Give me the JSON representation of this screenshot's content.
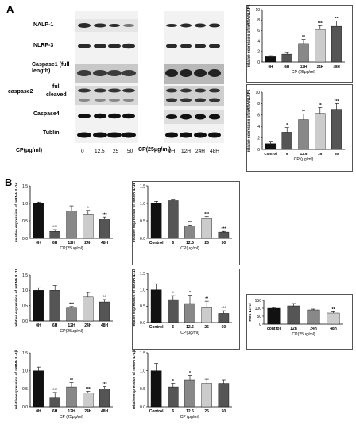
{
  "panel_A": {
    "letter": "A",
    "wb_labels": [
      "NALP-1",
      "NLRP-3",
      "Caspase1 (full length)",
      "caspase2",
      "full",
      "cleaved",
      "Caspase4",
      "Tublin"
    ],
    "cp_conc_label": "CP(μg/ml)",
    "cp_conc_ticks": [
      "0",
      "12.5",
      "25",
      "50"
    ],
    "cp_time_label": "CP(25μg/ml)",
    "cp_time_ticks": [
      "0H",
      "12H",
      "24H",
      "48H"
    ]
  },
  "panel_B": {
    "letter": "B"
  },
  "colors": {
    "bar_black": "#111111",
    "bar_dark": "#555555",
    "bar_mid": "#888888",
    "bar_light": "#cccccc"
  },
  "chart_data": [
    {
      "id": "A_nlrp1_time",
      "type": "bar",
      "ylabel": "relative expression of mRNA NLRP1",
      "xlabel": "CP (25μg/ml)",
      "categories": [
        "0H",
        "6H",
        "12H",
        "24H",
        "48H"
      ],
      "values": [
        1.0,
        1.5,
        3.5,
        6.2,
        6.8
      ],
      "errors": [
        0.2,
        0.3,
        0.8,
        0.7,
        1.0
      ],
      "sig": [
        "",
        "",
        "**",
        "***",
        "**"
      ],
      "ylim": [
        0,
        10
      ],
      "yticks": [
        "0",
        "2",
        "4",
        "6",
        "8",
        "10"
      ]
    },
    {
      "id": "A_nlrp1_conc",
      "type": "bar",
      "ylabel": "relative expression of mRNA NLRP1",
      "xlabel": "CP  (μg/ml)",
      "categories": [
        "Control",
        "6",
        "12.5",
        "25",
        "50"
      ],
      "values": [
        1.0,
        3.0,
        5.2,
        6.3,
        7.0
      ],
      "errors": [
        0.3,
        0.8,
        1.0,
        1.0,
        1.0
      ],
      "sig": [
        "",
        "*",
        "**",
        "**",
        "***"
      ],
      "ylim": [
        0,
        10
      ],
      "yticks": [
        "0",
        "2",
        "4",
        "6",
        "8",
        "10"
      ]
    },
    {
      "id": "B_il1a_time",
      "type": "bar",
      "ylabel": "relative expression of mRNA IL-1α",
      "xlabel": "CP(25μg/ml)",
      "categories": [
        "0H",
        "6H",
        "12H",
        "24H",
        "48H"
      ],
      "values": [
        1.0,
        0.2,
        0.78,
        0.7,
        0.56
      ],
      "errors": [
        0.04,
        0.05,
        0.15,
        0.1,
        0.05
      ],
      "sig": [
        "",
        "***",
        "",
        "*",
        "***"
      ],
      "ylim": [
        0,
        1.5
      ],
      "yticks": [
        "0.0",
        "0.5",
        "1.0",
        "1.5"
      ]
    },
    {
      "id": "B_il1a_conc",
      "type": "bar",
      "ylabel": "relative expression of mRNA IL-1α",
      "xlabel": "CP(μg/ml)",
      "categories": [
        "Control",
        "6",
        "12.5",
        "25",
        "50"
      ],
      "values": [
        1.0,
        1.08,
        0.35,
        0.58,
        0.18
      ],
      "errors": [
        0.06,
        0.02,
        0.03,
        0.04,
        0.02
      ],
      "sig": [
        "",
        "",
        "***",
        "***",
        "***"
      ],
      "ylim": [
        0,
        1.5
      ],
      "yticks": [
        "0.0",
        "0.5",
        "1.0",
        "1.5"
      ]
    },
    {
      "id": "B_il18_time",
      "type": "bar",
      "ylabel": "relative expression of mRNA IL-18",
      "xlabel": "CP(25μg/ml)",
      "categories": [
        "0H",
        "6H",
        "12H",
        "24H",
        "48H"
      ],
      "values": [
        1.0,
        1.0,
        0.42,
        0.78,
        0.62
      ],
      "errors": [
        0.08,
        0.15,
        0.05,
        0.15,
        0.08
      ],
      "sig": [
        "",
        "",
        "***",
        "",
        "**"
      ],
      "ylim": [
        0,
        1.5
      ],
      "yticks": [
        "0.0",
        "0.5",
        "1.0",
        "1.5"
      ]
    },
    {
      "id": "B_il18_conc",
      "type": "bar",
      "ylabel": "relative expression of mRNA IL-18",
      "xlabel": "CP(μg/ml)",
      "categories": [
        "Control",
        "6",
        "12.5",
        "25",
        "50"
      ],
      "values": [
        1.0,
        0.7,
        0.58,
        0.45,
        0.28
      ],
      "errors": [
        0.18,
        0.12,
        0.25,
        0.2,
        0.08
      ],
      "sig": [
        "",
        "*",
        "*",
        "**",
        "***"
      ],
      "ylim": [
        0,
        1.5
      ],
      "yticks": [
        "0.0",
        "0.5",
        "1.0",
        "1.5"
      ]
    },
    {
      "id": "B_ros",
      "type": "bar",
      "ylabel": "ROS Level",
      "xlabel": "CP(25μg/ml)",
      "categories": [
        "control",
        "12h",
        "24h",
        "48h"
      ],
      "values": [
        100,
        115,
        90,
        70
      ],
      "errors": [
        5,
        15,
        5,
        8
      ],
      "sig": [
        "",
        "",
        "",
        "**"
      ],
      "ylim": [
        0,
        150
      ],
      "yticks": [
        "0",
        "50",
        "100",
        "150"
      ]
    },
    {
      "id": "B_il1b_time",
      "type": "bar",
      "ylabel": "relative expression of mRNA IL-1β",
      "xlabel": "CP (25μg/ml)",
      "categories": [
        "0H",
        "6H",
        "12H",
        "24H",
        "48H"
      ],
      "values": [
        1.0,
        0.25,
        0.55,
        0.38,
        0.5
      ],
      "errors": [
        0.1,
        0.15,
        0.12,
        0.05,
        0.06
      ],
      "sig": [
        "",
        "***",
        "**",
        "***",
        "***"
      ],
      "ylim": [
        0,
        1.5
      ],
      "yticks": [
        "0.0",
        "0.5",
        "1.0",
        "1.5"
      ]
    },
    {
      "id": "B_il1b_conc",
      "type": "bar",
      "ylabel": "relative expression of mRNA IL-1β",
      "xlabel": "CP  (μg/ml)",
      "categories": [
        "Control",
        "6",
        "12.5",
        "25",
        "50"
      ],
      "values": [
        1.0,
        0.55,
        0.75,
        0.65,
        0.65
      ],
      "errors": [
        0.2,
        0.1,
        0.12,
        0.12,
        0.1
      ],
      "sig": [
        "",
        "*",
        "*",
        "",
        ""
      ],
      "ylim": [
        0,
        1.5
      ],
      "yticks": [
        "0.0",
        "0.5",
        "1.0",
        "1.5"
      ]
    }
  ]
}
